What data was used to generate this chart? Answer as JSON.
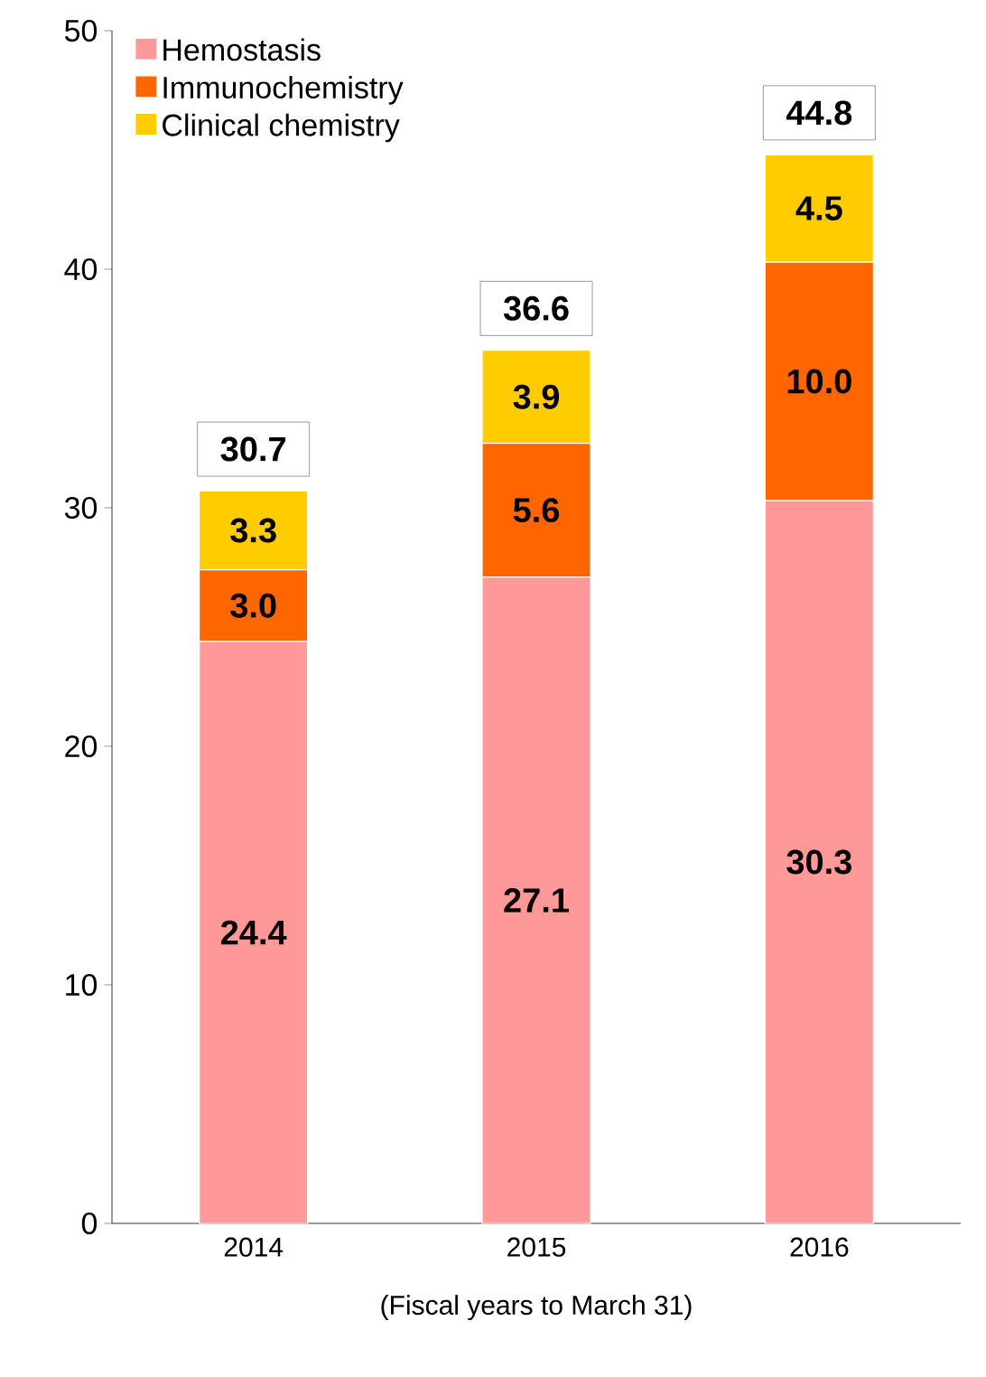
{
  "chart_data": {
    "type": "bar",
    "stacked": true,
    "categories": [
      "2014",
      "2015",
      "2016"
    ],
    "series": [
      {
        "name": "Hemostasis",
        "color": "#ff9999",
        "values": [
          24.4,
          27.1,
          30.3
        ],
        "value_labels": [
          "24.4",
          "27.1",
          "30.3"
        ]
      },
      {
        "name": "Immunochemistry",
        "color": "#ff6600",
        "values": [
          3.0,
          5.6,
          10.0
        ],
        "value_labels": [
          "3.0",
          "5.6",
          "10.0"
        ]
      },
      {
        "name": "Clinical chemistry",
        "color": "#ffcc00",
        "values": [
          3.3,
          3.9,
          4.5
        ],
        "value_labels": [
          "3.3",
          "3.9",
          "4.5"
        ]
      }
    ],
    "totals": [
      "30.7",
      "36.6",
      "44.8"
    ],
    "xlabel": "(Fiscal years to March 31)",
    "ylim": [
      0,
      50
    ],
    "yticks": [
      0,
      10,
      20,
      30,
      40,
      50
    ],
    "grid": false,
    "legend": "top left"
  }
}
